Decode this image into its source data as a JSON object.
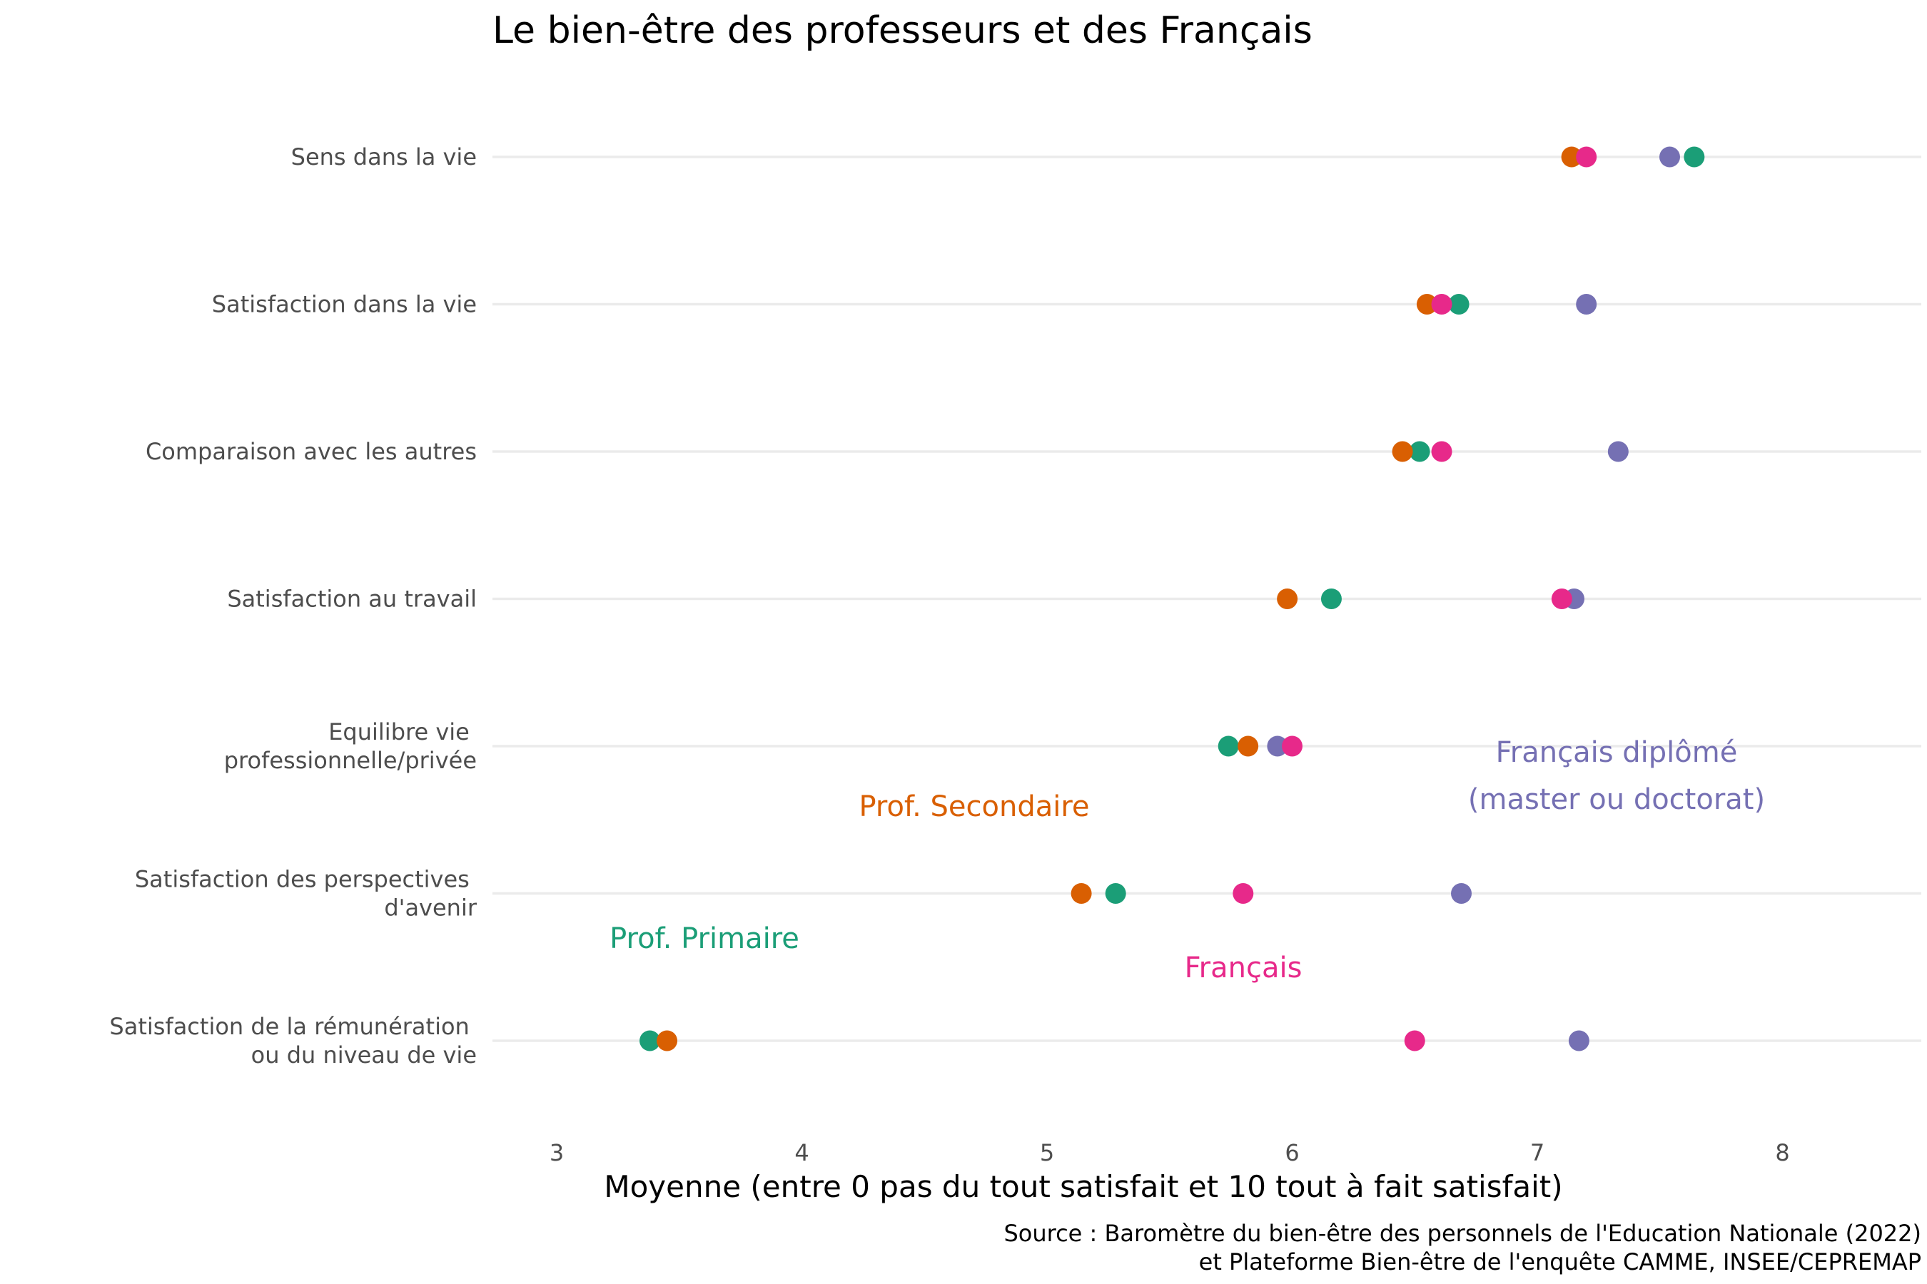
{
  "chart_data": {
    "type": "scatter",
    "title": "Le bien-être des professeurs et des Français",
    "xlabel": "Moyenne (entre 0 pas du tout satisfait et 10 tout à fait satisfait)",
    "ylabel": "",
    "xlim": [
      2.75,
      8.55
    ],
    "xticks": [
      3,
      4,
      5,
      6,
      7,
      8
    ],
    "grid": "horizontal",
    "categories": [
      "Sens dans la vie",
      "Satisfaction dans la vie",
      "Comparaison avec les autres",
      "Satisfaction au travail",
      "Equilibre vie \nprofessionnelle/privée",
      "Satisfaction des perspectives \nd'avenir",
      "Satisfaction de la rémunération \nou du niveau de vie"
    ],
    "series": [
      {
        "name": "Prof. Primaire",
        "color": "#1b9e77",
        "values": [
          7.64,
          6.68,
          6.52,
          6.16,
          5.74,
          5.28,
          3.38
        ]
      },
      {
        "name": "Prof. Secondaire",
        "color": "#d95f02",
        "values": [
          7.14,
          6.55,
          6.45,
          5.98,
          5.82,
          5.14,
          3.45
        ]
      },
      {
        "name": "Français diplômé\n(master ou doctorat)",
        "color": "#7570b3",
        "values": [
          7.54,
          7.2,
          7.33,
          7.15,
          5.94,
          6.69,
          7.17
        ]
      },
      {
        "name": "Français",
        "color": "#e7298a",
        "values": [
          7.2,
          6.61,
          6.61,
          7.1,
          6.0,
          5.8,
          6.5
        ]
      }
    ],
    "caption": "Source : Baromètre du bien-être des personnels de l'Education Nationale (2022)\net Plateforme Bien-être de l'enquête CAMME, INSEE/CEPREMAP"
  }
}
